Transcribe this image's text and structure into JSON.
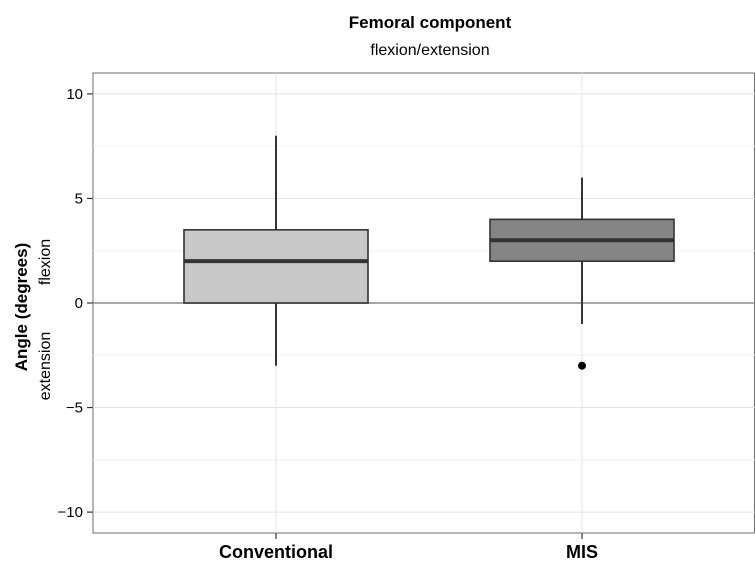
{
  "chart_data": {
    "type": "box",
    "title": "Femoral component",
    "subtitle": "flexion/extension",
    "ylabel": "Angle (degrees)",
    "ylabel_upper": "flexion",
    "ylabel_lower": "extension",
    "xlabel": "",
    "ylim": [
      -11,
      11
    ],
    "yticks": [
      10,
      5,
      0,
      -5,
      -10
    ],
    "grid": true,
    "reference_line": 0,
    "categories": [
      "Conventional",
      "MIS"
    ],
    "boxes": [
      {
        "category": "Conventional",
        "min": -3,
        "q1": 0,
        "median": 2,
        "q3": 3.5,
        "max": 8,
        "outliers": [],
        "color": "#c8c8c8"
      },
      {
        "category": "MIS",
        "min": -1,
        "q1": 2,
        "median": 3,
        "q3": 4,
        "max": 6,
        "outliers": [
          -3
        ],
        "color": "#858585"
      }
    ]
  }
}
